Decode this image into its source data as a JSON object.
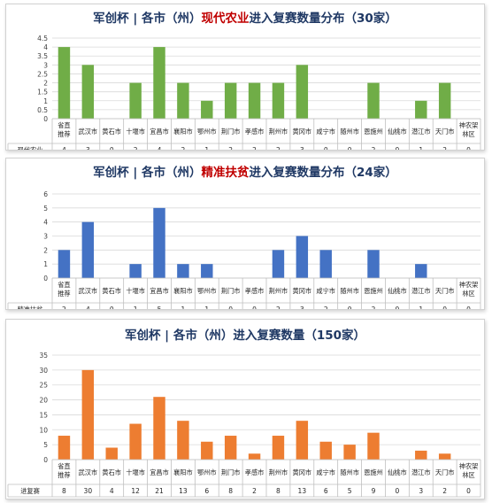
{
  "chart_data": [
    {
      "type": "bar",
      "title_parts": [
        "军创杯 | 各市（州）",
        "现代农业",
        "进入复赛数量分布（30家）"
      ],
      "title_colors": [
        "#1f3864",
        "#c00000",
        "#1f3864"
      ],
      "color": "#70ad47",
      "categories": [
        [
          "省直",
          "推荐"
        ],
        [
          "武汉市"
        ],
        [
          "黄石市"
        ],
        [
          "十堰市"
        ],
        [
          "宜昌市"
        ],
        [
          "襄阳市"
        ],
        [
          "鄂州市"
        ],
        [
          "荆门市"
        ],
        [
          "孝感市"
        ],
        [
          "荆州市"
        ],
        [
          "黄冈市"
        ],
        [
          "咸宁市"
        ],
        [
          "随州市"
        ],
        [
          "恩施州"
        ],
        [
          "仙桃市"
        ],
        [
          "潜江市"
        ],
        [
          "天门市"
        ],
        [
          "神农架",
          "林区"
        ]
      ],
      "series": [
        {
          "name": "现代农业",
          "values": [
            4,
            3,
            0,
            2,
            4,
            2,
            1,
            2,
            2,
            2,
            3,
            0,
            0,
            2,
            0,
            1,
            2,
            0
          ]
        }
      ],
      "ylim": [
        0,
        4.5
      ],
      "yticks": [
        "0",
        "0.5",
        "1",
        "1.5",
        "2",
        "2.5",
        "3",
        "3.5",
        "4",
        "4.5"
      ],
      "grid": true
    },
    {
      "type": "bar",
      "title_parts": [
        "军创杯 | 各市（州）",
        "精准扶贫",
        "进入复赛数量分布（24家）"
      ],
      "title_colors": [
        "#1f3864",
        "#c00000",
        "#1f3864"
      ],
      "color": "#4472c4",
      "categories": [
        [
          "省直",
          "推荐"
        ],
        [
          "武汉市"
        ],
        [
          "黄石市"
        ],
        [
          "十堰市"
        ],
        [
          "宜昌市"
        ],
        [
          "襄阳市"
        ],
        [
          "鄂州市"
        ],
        [
          "荆门市"
        ],
        [
          "孝感市"
        ],
        [
          "荆州市"
        ],
        [
          "黄冈市"
        ],
        [
          "咸宁市"
        ],
        [
          "随州市"
        ],
        [
          "恩施州"
        ],
        [
          "仙桃市"
        ],
        [
          "潜江市"
        ],
        [
          "天门市"
        ],
        [
          "神农架",
          "林区"
        ]
      ],
      "series": [
        {
          "name": "精准扶贫",
          "values": [
            2,
            4,
            0,
            1,
            5,
            1,
            1,
            0,
            0,
            2,
            3,
            2,
            0,
            2,
            0,
            1,
            0,
            0
          ]
        }
      ],
      "ylim": [
        0,
        6
      ],
      "yticks": [
        "0",
        "1",
        "2",
        "3",
        "4",
        "5",
        "6"
      ],
      "grid": true
    },
    {
      "type": "bar",
      "title_parts": [
        "军创杯 | 各市（州）进入复赛数量（150家）"
      ],
      "title_colors": [
        "#1f3864"
      ],
      "color": "#ed7d31",
      "categories": [
        [
          "省直",
          "推荐"
        ],
        [
          "武汉市"
        ],
        [
          "黄石市"
        ],
        [
          "十堰市"
        ],
        [
          "宜昌市"
        ],
        [
          "襄阳市"
        ],
        [
          "鄂州市"
        ],
        [
          "荆门市"
        ],
        [
          "孝感市"
        ],
        [
          "荆州市"
        ],
        [
          "黄冈市"
        ],
        [
          "咸宁市"
        ],
        [
          "随州市"
        ],
        [
          "恩施州"
        ],
        [
          "仙桃市"
        ],
        [
          "潜江市"
        ],
        [
          "天门市"
        ],
        [
          "神农架",
          "林区"
        ]
      ],
      "series": [
        {
          "name": "进复赛",
          "values": [
            8,
            30,
            4,
            12,
            21,
            13,
            6,
            8,
            2,
            8,
            13,
            6,
            5,
            9,
            0,
            3,
            2,
            0
          ]
        }
      ],
      "ylim": [
        0,
        35
      ],
      "yticks": [
        "0",
        "5",
        "10",
        "15",
        "20",
        "25",
        "30",
        "35"
      ],
      "grid": true
    }
  ]
}
